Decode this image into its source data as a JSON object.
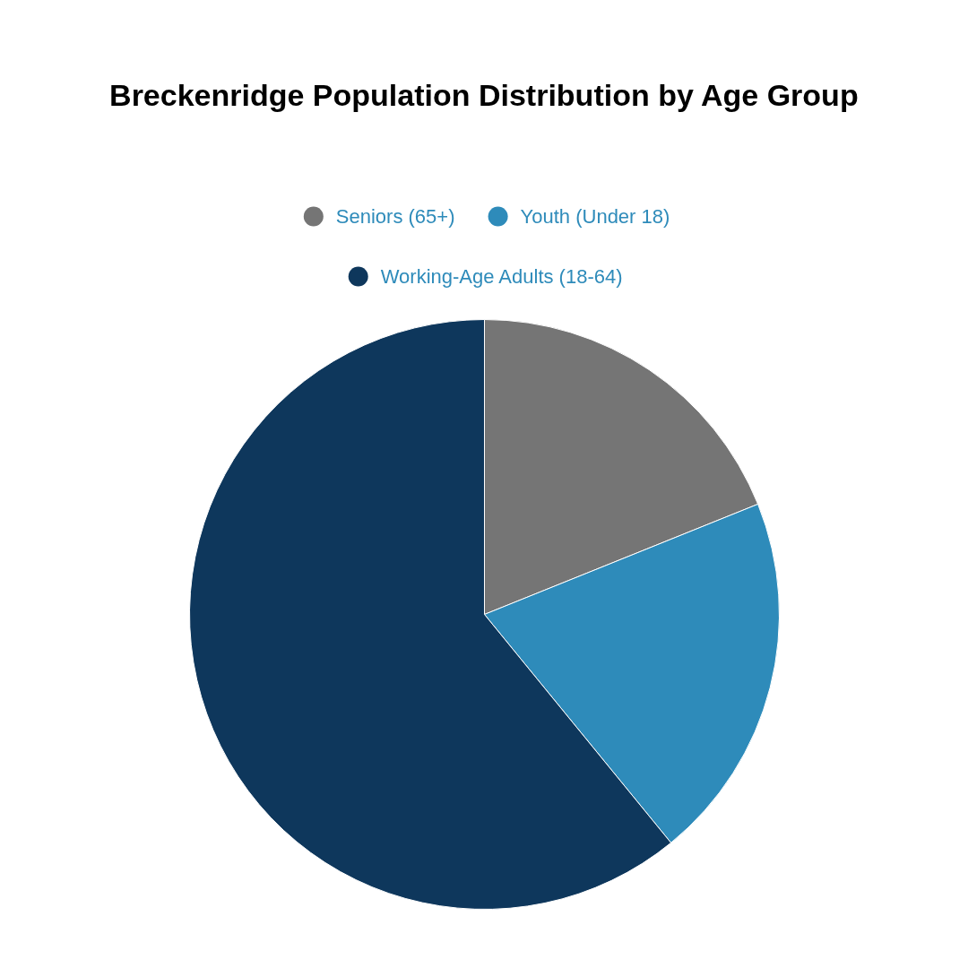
{
  "chart_data": {
    "type": "pie",
    "title": "Breckenridge Population Distribution by Age Group",
    "categories": [
      "Seniors (65+)",
      "Youth (Under 18)",
      "Working-Age Adults (18-64)"
    ],
    "values": [
      18.9,
      20.2,
      60.9
    ],
    "colors": [
      "#757575",
      "#2e8bba",
      "#0e375c"
    ],
    "legend": "top"
  }
}
